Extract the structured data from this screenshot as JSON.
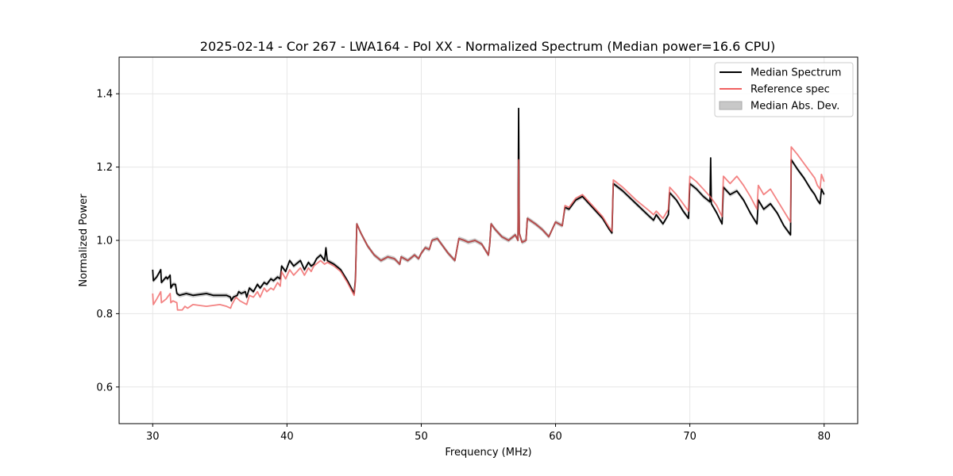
{
  "chart_data": {
    "type": "line",
    "title": "2025-02-14 - Cor 267 - LWA164 - Pol XX - Normalized Spectrum (Median power=16.6 CPU)",
    "xlabel": "Frequency (MHz)",
    "ylabel": "Normalized Power",
    "xlim": [
      27.5,
      82.5
    ],
    "ylim": [
      0.5,
      1.5
    ],
    "xticks": [
      30,
      40,
      50,
      60,
      70,
      80
    ],
    "yticks": [
      0.6,
      0.8,
      1.0,
      1.2,
      1.4
    ],
    "xtick_labels": [
      "30",
      "40",
      "50",
      "60",
      "70",
      "80"
    ],
    "ytick_labels": [
      "0.6",
      "0.8",
      "1.0",
      "1.2",
      "1.4"
    ],
    "grid": true,
    "legend_position": "top-right",
    "legend": [
      {
        "label": "Median Spectrum",
        "color": "#000000",
        "kind": "line"
      },
      {
        "label": "Reference spec",
        "color": "#f06060",
        "kind": "line"
      },
      {
        "label": "Median Abs. Dev.",
        "color": "#c8c8c8",
        "kind": "patch"
      }
    ],
    "series": [
      {
        "name": "Median Spectrum",
        "color": "#000000",
        "points": [
          [
            30.0,
            0.92
          ],
          [
            30.05,
            0.89
          ],
          [
            30.3,
            0.9
          ],
          [
            30.6,
            0.92
          ],
          [
            30.65,
            0.885
          ],
          [
            31.0,
            0.9
          ],
          [
            31.1,
            0.895
          ],
          [
            31.3,
            0.905
          ],
          [
            31.35,
            0.87
          ],
          [
            31.5,
            0.88
          ],
          [
            31.7,
            0.88
          ],
          [
            31.8,
            0.855
          ],
          [
            32.0,
            0.85
          ],
          [
            32.5,
            0.855
          ],
          [
            33.0,
            0.85
          ],
          [
            34.0,
            0.855
          ],
          [
            34.5,
            0.85
          ],
          [
            35.0,
            0.85
          ],
          [
            35.5,
            0.85
          ],
          [
            35.8,
            0.845
          ],
          [
            35.85,
            0.835
          ],
          [
            36.0,
            0.845
          ],
          [
            36.3,
            0.85
          ],
          [
            36.4,
            0.86
          ],
          [
            36.6,
            0.855
          ],
          [
            36.9,
            0.86
          ],
          [
            37.0,
            0.845
          ],
          [
            37.2,
            0.87
          ],
          [
            37.5,
            0.86
          ],
          [
            37.8,
            0.88
          ],
          [
            38.0,
            0.87
          ],
          [
            38.3,
            0.885
          ],
          [
            38.5,
            0.88
          ],
          [
            38.8,
            0.895
          ],
          [
            39.0,
            0.89
          ],
          [
            39.3,
            0.9
          ],
          [
            39.5,
            0.895
          ],
          [
            39.6,
            0.93
          ],
          [
            39.9,
            0.915
          ],
          [
            40.2,
            0.945
          ],
          [
            40.5,
            0.93
          ],
          [
            41.0,
            0.945
          ],
          [
            41.3,
            0.92
          ],
          [
            41.6,
            0.94
          ],
          [
            41.8,
            0.93
          ],
          [
            42.0,
            0.935
          ],
          [
            42.2,
            0.95
          ],
          [
            42.5,
            0.96
          ],
          [
            42.8,
            0.945
          ],
          [
            42.9,
            0.98
          ],
          [
            43.0,
            0.945
          ],
          [
            43.5,
            0.935
          ],
          [
            44.0,
            0.92
          ],
          [
            44.5,
            0.89
          ],
          [
            45.0,
            0.855
          ],
          [
            45.1,
            0.895
          ],
          [
            45.2,
            1.045
          ],
          [
            45.5,
            1.02
          ],
          [
            46.0,
            0.985
          ],
          [
            46.5,
            0.96
          ],
          [
            47.0,
            0.945
          ],
          [
            47.5,
            0.955
          ],
          [
            48.0,
            0.95
          ],
          [
            48.4,
            0.935
          ],
          [
            48.5,
            0.955
          ],
          [
            49.0,
            0.945
          ],
          [
            49.5,
            0.96
          ],
          [
            49.8,
            0.95
          ],
          [
            50.0,
            0.965
          ],
          [
            50.3,
            0.98
          ],
          [
            50.6,
            0.975
          ],
          [
            50.8,
            1.0
          ],
          [
            51.2,
            1.005
          ],
          [
            51.5,
            0.99
          ],
          [
            52.0,
            0.965
          ],
          [
            52.5,
            0.945
          ],
          [
            52.6,
            0.965
          ],
          [
            52.8,
            1.005
          ],
          [
            53.2,
            1.0
          ],
          [
            53.5,
            0.995
          ],
          [
            54.0,
            1.0
          ],
          [
            54.5,
            0.99
          ],
          [
            55.0,
            0.96
          ],
          [
            55.1,
            0.99
          ],
          [
            55.2,
            1.045
          ],
          [
            55.5,
            1.03
          ],
          [
            56.0,
            1.01
          ],
          [
            56.5,
            1.0
          ],
          [
            57.0,
            1.015
          ],
          [
            57.2,
            1.0
          ],
          [
            57.25,
            1.36
          ],
          [
            57.3,
            1.02
          ],
          [
            57.5,
            0.995
          ],
          [
            57.8,
            1.0
          ],
          [
            57.9,
            1.06
          ],
          [
            58.5,
            1.045
          ],
          [
            59.0,
            1.03
          ],
          [
            59.5,
            1.01
          ],
          [
            60.0,
            1.05
          ],
          [
            60.5,
            1.04
          ],
          [
            60.7,
            1.09
          ],
          [
            61.0,
            1.085
          ],
          [
            61.5,
            1.11
          ],
          [
            62.0,
            1.12
          ],
          [
            62.5,
            1.1
          ],
          [
            63.0,
            1.08
          ],
          [
            63.5,
            1.06
          ],
          [
            64.0,
            1.03
          ],
          [
            64.2,
            1.02
          ],
          [
            64.3,
            1.155
          ],
          [
            65.0,
            1.135
          ],
          [
            66.0,
            1.1
          ],
          [
            67.0,
            1.065
          ],
          [
            67.3,
            1.055
          ],
          [
            67.5,
            1.07
          ],
          [
            68.0,
            1.045
          ],
          [
            68.4,
            1.07
          ],
          [
            68.5,
            1.13
          ],
          [
            69.0,
            1.11
          ],
          [
            69.5,
            1.08
          ],
          [
            69.9,
            1.06
          ],
          [
            70.0,
            1.155
          ],
          [
            70.5,
            1.14
          ],
          [
            71.0,
            1.12
          ],
          [
            71.5,
            1.105
          ],
          [
            71.55,
            1.225
          ],
          [
            71.6,
            1.1
          ],
          [
            72.0,
            1.075
          ],
          [
            72.4,
            1.045
          ],
          [
            72.5,
            1.145
          ],
          [
            73.0,
            1.125
          ],
          [
            73.5,
            1.135
          ],
          [
            74.0,
            1.11
          ],
          [
            74.5,
            1.075
          ],
          [
            75.0,
            1.045
          ],
          [
            75.1,
            1.11
          ],
          [
            75.5,
            1.085
          ],
          [
            76.0,
            1.1
          ],
          [
            76.5,
            1.075
          ],
          [
            77.0,
            1.04
          ],
          [
            77.5,
            1.015
          ],
          [
            77.55,
            1.22
          ],
          [
            78.0,
            1.195
          ],
          [
            78.5,
            1.17
          ],
          [
            79.0,
            1.14
          ],
          [
            79.3,
            1.125
          ],
          [
            79.5,
            1.11
          ],
          [
            79.7,
            1.1
          ],
          [
            79.8,
            1.14
          ],
          [
            80.0,
            1.125
          ]
        ]
      },
      {
        "name": "Reference spec",
        "color": "#f06060",
        "points": [
          [
            30.0,
            0.855
          ],
          [
            30.05,
            0.825
          ],
          [
            30.3,
            0.84
          ],
          [
            30.6,
            0.86
          ],
          [
            30.65,
            0.83
          ],
          [
            31.0,
            0.84
          ],
          [
            31.3,
            0.855
          ],
          [
            31.35,
            0.83
          ],
          [
            31.5,
            0.835
          ],
          [
            31.8,
            0.83
          ],
          [
            31.85,
            0.81
          ],
          [
            32.2,
            0.81
          ],
          [
            32.4,
            0.82
          ],
          [
            32.6,
            0.815
          ],
          [
            33.0,
            0.825
          ],
          [
            34.0,
            0.82
          ],
          [
            35.0,
            0.825
          ],
          [
            35.5,
            0.82
          ],
          [
            35.8,
            0.815
          ],
          [
            35.9,
            0.825
          ],
          [
            36.2,
            0.845
          ],
          [
            36.5,
            0.835
          ],
          [
            37.0,
            0.825
          ],
          [
            37.2,
            0.85
          ],
          [
            37.5,
            0.845
          ],
          [
            37.8,
            0.86
          ],
          [
            38.0,
            0.845
          ],
          [
            38.3,
            0.87
          ],
          [
            38.5,
            0.86
          ],
          [
            38.8,
            0.87
          ],
          [
            39.0,
            0.865
          ],
          [
            39.3,
            0.885
          ],
          [
            39.5,
            0.875
          ],
          [
            39.6,
            0.915
          ],
          [
            39.9,
            0.895
          ],
          [
            40.2,
            0.92
          ],
          [
            40.5,
            0.905
          ],
          [
            41.0,
            0.925
          ],
          [
            41.3,
            0.905
          ],
          [
            41.6,
            0.925
          ],
          [
            41.8,
            0.915
          ],
          [
            42.0,
            0.93
          ],
          [
            42.5,
            0.945
          ],
          [
            42.8,
            0.935
          ],
          [
            43.0,
            0.94
          ],
          [
            43.5,
            0.93
          ],
          [
            44.0,
            0.915
          ],
          [
            44.5,
            0.885
          ],
          [
            45.0,
            0.85
          ],
          [
            45.1,
            0.89
          ],
          [
            45.2,
            1.045
          ],
          [
            45.5,
            1.02
          ],
          [
            46.0,
            0.985
          ],
          [
            46.5,
            0.96
          ],
          [
            47.0,
            0.945
          ],
          [
            47.5,
            0.955
          ],
          [
            48.0,
            0.95
          ],
          [
            48.4,
            0.935
          ],
          [
            48.5,
            0.955
          ],
          [
            49.0,
            0.945
          ],
          [
            49.5,
            0.96
          ],
          [
            49.8,
            0.95
          ],
          [
            50.0,
            0.965
          ],
          [
            50.3,
            0.98
          ],
          [
            50.6,
            0.975
          ],
          [
            50.8,
            1.0
          ],
          [
            51.2,
            1.005
          ],
          [
            51.5,
            0.99
          ],
          [
            52.0,
            0.965
          ],
          [
            52.5,
            0.945
          ],
          [
            52.6,
            0.965
          ],
          [
            52.8,
            1.005
          ],
          [
            53.2,
            1.0
          ],
          [
            53.5,
            0.995
          ],
          [
            54.0,
            1.0
          ],
          [
            54.5,
            0.99
          ],
          [
            55.0,
            0.96
          ],
          [
            55.1,
            0.99
          ],
          [
            55.2,
            1.045
          ],
          [
            55.5,
            1.03
          ],
          [
            56.0,
            1.01
          ],
          [
            56.5,
            1.0
          ],
          [
            57.0,
            1.015
          ],
          [
            57.2,
            1.0
          ],
          [
            57.25,
            1.22
          ],
          [
            57.3,
            1.02
          ],
          [
            57.5,
            0.995
          ],
          [
            57.8,
            1.0
          ],
          [
            57.9,
            1.06
          ],
          [
            58.5,
            1.045
          ],
          [
            59.0,
            1.03
          ],
          [
            59.5,
            1.01
          ],
          [
            60.0,
            1.05
          ],
          [
            60.5,
            1.04
          ],
          [
            60.7,
            1.095
          ],
          [
            61.0,
            1.09
          ],
          [
            61.5,
            1.115
          ],
          [
            62.0,
            1.125
          ],
          [
            62.5,
            1.105
          ],
          [
            63.0,
            1.085
          ],
          [
            63.5,
            1.065
          ],
          [
            64.0,
            1.035
          ],
          [
            64.2,
            1.025
          ],
          [
            64.3,
            1.165
          ],
          [
            65.0,
            1.145
          ],
          [
            66.0,
            1.11
          ],
          [
            67.0,
            1.08
          ],
          [
            67.3,
            1.07
          ],
          [
            67.5,
            1.08
          ],
          [
            68.0,
            1.06
          ],
          [
            68.4,
            1.085
          ],
          [
            68.5,
            1.145
          ],
          [
            69.0,
            1.125
          ],
          [
            69.5,
            1.1
          ],
          [
            69.9,
            1.08
          ],
          [
            70.0,
            1.175
          ],
          [
            70.5,
            1.16
          ],
          [
            71.0,
            1.14
          ],
          [
            71.5,
            1.12
          ],
          [
            72.0,
            1.095
          ],
          [
            72.4,
            1.065
          ],
          [
            72.5,
            1.175
          ],
          [
            73.0,
            1.155
          ],
          [
            73.5,
            1.175
          ],
          [
            74.0,
            1.15
          ],
          [
            74.5,
            1.12
          ],
          [
            75.0,
            1.085
          ],
          [
            75.1,
            1.15
          ],
          [
            75.5,
            1.125
          ],
          [
            76.0,
            1.14
          ],
          [
            76.5,
            1.11
          ],
          [
            77.0,
            1.08
          ],
          [
            77.5,
            1.05
          ],
          [
            77.55,
            1.255
          ],
          [
            78.0,
            1.235
          ],
          [
            78.5,
            1.21
          ],
          [
            79.0,
            1.185
          ],
          [
            79.3,
            1.17
          ],
          [
            79.5,
            1.15
          ],
          [
            79.7,
            1.14
          ],
          [
            79.8,
            1.18
          ],
          [
            80.0,
            1.16
          ]
        ]
      }
    ],
    "mad_width": 0.006
  }
}
